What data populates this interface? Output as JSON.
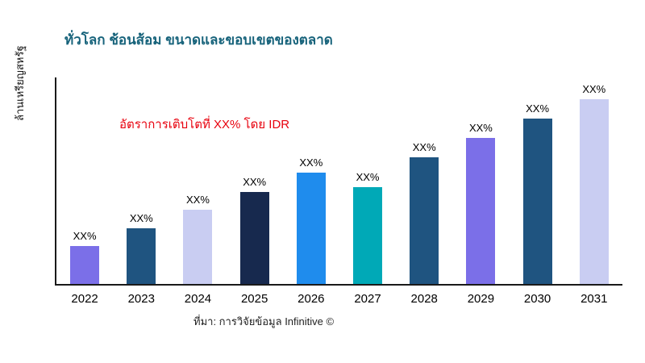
{
  "header": {
    "title": "ทั่วโลก ช้อนส้อม ขนาดและขอบเขตของตลาด"
  },
  "annotation": {
    "text": "อัตราการเติบโตที่ XX% โดย IDR",
    "color": "#e8000d"
  },
  "y_axis": {
    "label": "ล้านเหรียญสหรัฐ"
  },
  "footer": {
    "source": "ที่มา: การวิจัยข้อมูล Infinitive ©"
  },
  "chart_data": {
    "type": "bar",
    "title": "ทั่วโลก ช้อนส้อม ขนาดและขอบเขตของตลาด",
    "xlabel": "",
    "ylabel": "ล้านเหรียญสหรัฐ",
    "categories": [
      "2022",
      "2023",
      "2024",
      "2025",
      "2026",
      "2027",
      "2028",
      "2029",
      "2030",
      "2031"
    ],
    "bar_labels": [
      "XX%",
      "XX%",
      "XX%",
      "XX%",
      "XX%",
      "XX%",
      "XX%",
      "XX%",
      "XX%",
      "XX%"
    ],
    "relative_values": [
      47,
      69,
      92,
      114,
      138,
      120,
      157,
      181,
      205,
      229
    ],
    "colors": [
      "#7b6fe8",
      "#1f5480",
      "#c9cdf2",
      "#17294e",
      "#1f8ced",
      "#00a9b7",
      "#1f5480",
      "#7b6fe8",
      "#1f5480",
      "#c9cdf2"
    ],
    "value_axis_numeric_labels": false,
    "grid": false,
    "legend": "none",
    "annotation": "อัตราการเติบโตที่ XX% โดย IDR"
  }
}
